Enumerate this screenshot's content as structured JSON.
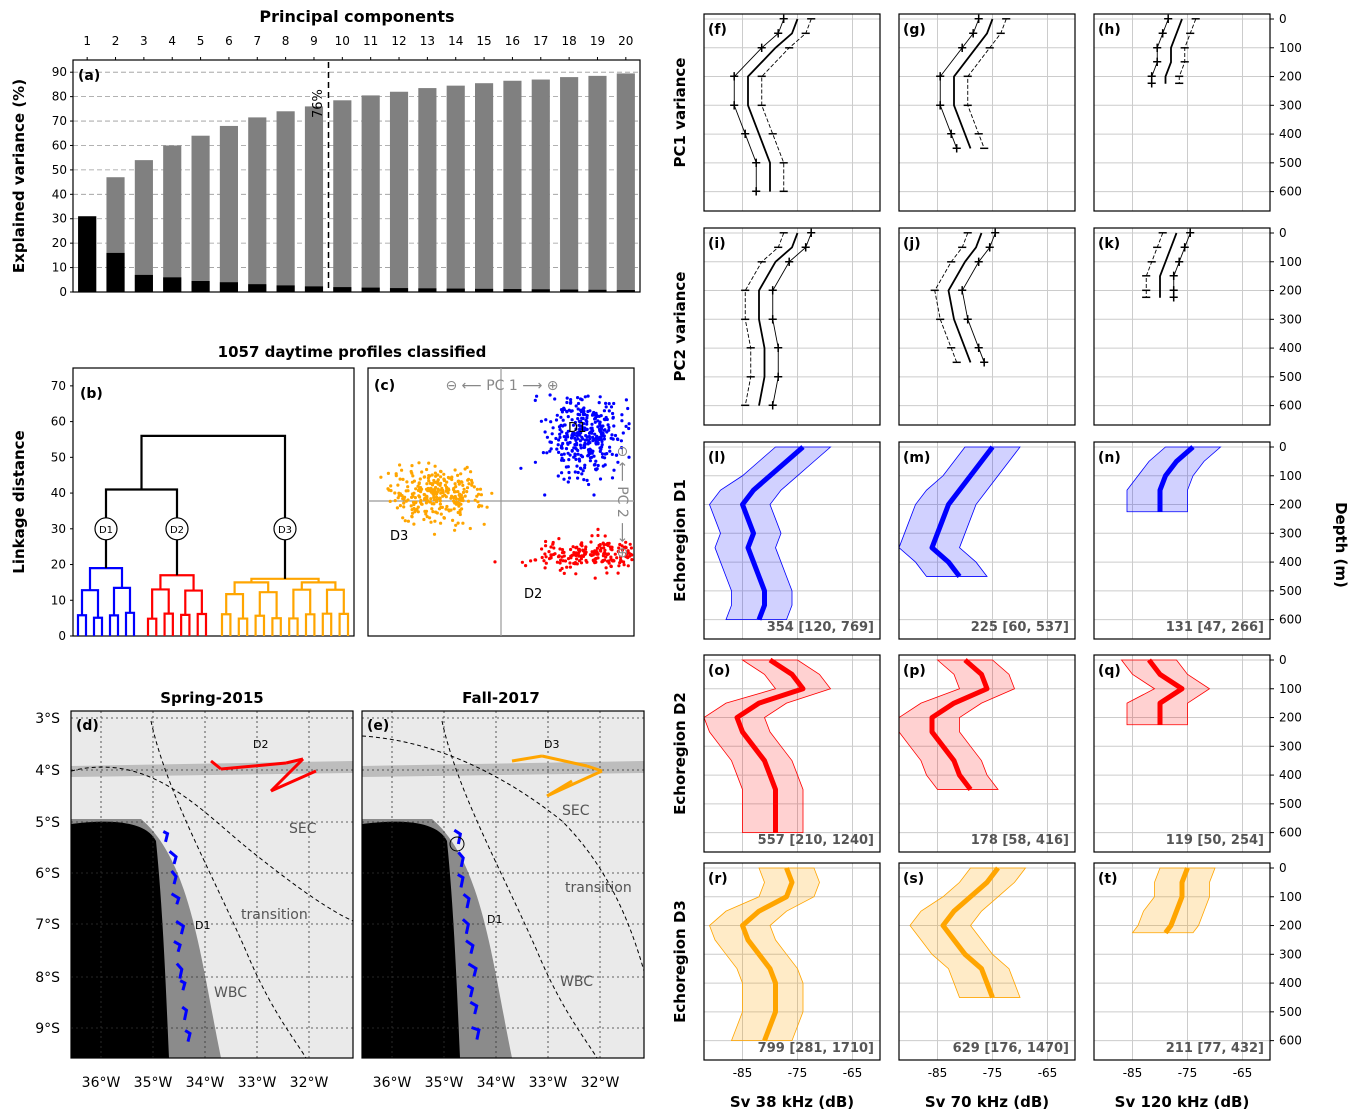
{
  "figure": {
    "pc_title": "Principal components",
    "pc_axis_ylabel": "Explained variance (%)",
    "classified_title": "1057 daytime profiles classified",
    "linkage_ylabel": "Linkage distance",
    "depth_label": "Depth (m)",
    "map_titles": [
      "Spring-2015",
      "Fall-2017"
    ]
  },
  "colors": {
    "D1": "#0000ff",
    "D2": "#ff0000",
    "D3": "#ffa500",
    "cum_bar": "#808080",
    "ind_bar": "#000000"
  },
  "chart_data": [
    {
      "type": "bar",
      "panel": "(a)",
      "title": "Principal components",
      "ylabel": "Explained variance (%)",
      "categories": [
        "1",
        "2",
        "3",
        "4",
        "5",
        "6",
        "7",
        "8",
        "9",
        "10",
        "11",
        "12",
        "13",
        "14",
        "15",
        "16",
        "17",
        "18",
        "19",
        "20"
      ],
      "ylim": [
        0,
        90
      ],
      "yticks": [
        "0",
        "10",
        "20",
        "30",
        "40",
        "50",
        "60",
        "70",
        "80",
        "90"
      ],
      "series": [
        {
          "values": [
            31,
            47,
            54,
            60,
            64,
            68,
            71.5,
            74,
            76,
            78.5,
            80.5,
            82,
            83.5,
            84.5,
            85.5,
            86.5,
            87,
            88,
            88.5,
            89.5
          ]
        },
        {
          "values": [
            31,
            16,
            7,
            6,
            4.5,
            4,
            3.2,
            2.7,
            2.3,
            2.0,
            1.8,
            1.6,
            1.5,
            1.4,
            1.3,
            1.2,
            1.1,
            1.0,
            0.9,
            0.8
          ]
        }
      ],
      "annotation": "76%",
      "grid": "horizontal dashed"
    },
    {
      "type": "dendrogram",
      "panel": "(b)",
      "ylabel": "Linkage distance",
      "ylim": [
        0,
        75
      ],
      "yticks": [
        "0",
        "10",
        "20",
        "30",
        "40",
        "50",
        "60",
        "70"
      ],
      "clusters": [
        "D1",
        "D2",
        "D3"
      ],
      "merge_heights": {
        "D1_D2": 41,
        "all": 56
      },
      "cluster_heights": {
        "D1": 19,
        "D2": 17,
        "D3": 16
      }
    },
    {
      "type": "scatter",
      "panel": "(c)",
      "axis_labels": [
        "⊖ ⟵ PC 1 ⟶ ⊕",
        "⊖ ⟵ PC 2 ⟶ ⊕"
      ],
      "groups": [
        {
          "label": "D1",
          "center": [
            0.7,
            0.55
          ],
          "spread": [
            0.35,
            0.4
          ],
          "count": 360
        },
        {
          "label": "D2",
          "center": [
            0.75,
            -0.45
          ],
          "spread": [
            0.5,
            0.15
          ],
          "count": 220
        },
        {
          "label": "D3",
          "center": [
            -0.55,
            0.05
          ],
          "spread": [
            0.45,
            0.25
          ],
          "count": 300
        }
      ]
    },
    {
      "type": "map",
      "panels": [
        "(d)",
        "(e)"
      ],
      "titles": [
        "Spring-2015",
        "Fall-2017"
      ],
      "lat_ticks": [
        "3°S",
        "4°S",
        "5°S",
        "6°S",
        "7°S",
        "8°S",
        "9°S"
      ],
      "lon_ticks": [
        "36°W",
        "35°W",
        "34°W",
        "33°W",
        "32°W"
      ],
      "labels_d": [
        "D2",
        "SEC",
        "transition",
        "D1",
        "WBC"
      ],
      "labels_e": [
        "D3",
        "SEC",
        "transition",
        "D1",
        "WBC"
      ]
    },
    {
      "type": "line",
      "panel": "profiles (f)-(t)",
      "xlabels": [
        "Sv 38 kHz (dB)",
        "Sv 70 kHz (dB)",
        "Sv 120 kHz (dB)"
      ],
      "xticks": [
        "-85",
        "-75",
        "-65"
      ],
      "xlim": [
        -92,
        -60
      ],
      "ylabel": "Depth (m)",
      "depth_ticks": [
        "0",
        "100",
        "200",
        "300",
        "400",
        "500",
        "600"
      ],
      "row_labels": [
        "PC1 variance",
        "PC2 variance",
        "Echoregion D1",
        "Echoregion D2",
        "Echoregion D3"
      ],
      "panel_letters": [
        [
          "(f)",
          "(g)",
          "(h)"
        ],
        [
          "(i)",
          "(j)",
          "(k)"
        ],
        [
          "(l)",
          "(m)",
          "(n)"
        ],
        [
          "(o)",
          "(p)",
          "(q)"
        ],
        [
          "(r)",
          "(s)",
          "(t)"
        ]
      ],
      "counts": {
        "D1": [
          "354 [120, 769]",
          "225 [60, 537]",
          "131 [47, 266]"
        ],
        "D2": [
          "557 [210, 1240]",
          "178 [58, 416]",
          "119 [50, 254]"
        ],
        "D3": [
          "799 [281, 1710]",
          "629 [176, 1470]",
          "211 [77, 432]"
        ]
      },
      "max_depth": [
        650,
        450,
        220
      ],
      "mean_profiles": {
        "D1": [
          [
            [
              0,
              -74
            ],
            [
              50,
              -77
            ],
            [
              100,
              -80
            ],
            [
              150,
              -83
            ],
            [
              200,
              -85
            ],
            [
              250,
              -84
            ],
            [
              300,
              -83
            ],
            [
              350,
              -84
            ],
            [
              400,
              -83
            ],
            [
              450,
              -82
            ],
            [
              500,
              -81
            ],
            [
              550,
              -81
            ],
            [
              600,
              -82
            ]
          ],
          [
            [
              0,
              -75
            ],
            [
              50,
              -77
            ],
            [
              100,
              -79
            ],
            [
              150,
              -81
            ],
            [
              200,
              -83
            ],
            [
              250,
              -84
            ],
            [
              300,
              -85
            ],
            [
              350,
              -86
            ],
            [
              400,
              -83
            ],
            [
              450,
              -81
            ]
          ],
          [
            [
              0,
              -74
            ],
            [
              50,
              -77
            ],
            [
              100,
              -79
            ],
            [
              150,
              -80
            ],
            [
              200,
              -80
            ],
            [
              225,
              -80
            ]
          ]
        ],
        "D2": [
          [
            [
              0,
              -80
            ],
            [
              50,
              -76
            ],
            [
              100,
              -74
            ],
            [
              150,
              -82
            ],
            [
              200,
              -86
            ],
            [
              250,
              -85
            ],
            [
              300,
              -83
            ],
            [
              350,
              -81
            ],
            [
              400,
              -80
            ],
            [
              450,
              -79
            ],
            [
              500,
              -79
            ],
            [
              550,
              -79
            ],
            [
              600,
              -79
            ]
          ],
          [
            [
              0,
              -80
            ],
            [
              50,
              -77
            ],
            [
              100,
              -76
            ],
            [
              150,
              -82
            ],
            [
              200,
              -86
            ],
            [
              250,
              -86
            ],
            [
              300,
              -84
            ],
            [
              350,
              -82
            ],
            [
              400,
              -81
            ],
            [
              450,
              -79
            ]
          ],
          [
            [
              0,
              -82
            ],
            [
              50,
              -80
            ],
            [
              100,
              -76
            ],
            [
              150,
              -80
            ],
            [
              200,
              -80
            ],
            [
              225,
              -80
            ]
          ]
        ],
        "D3": [
          [
            [
              0,
              -77
            ],
            [
              50,
              -76
            ],
            [
              100,
              -77
            ],
            [
              150,
              -82
            ],
            [
              200,
              -85
            ],
            [
              250,
              -84
            ],
            [
              300,
              -82
            ],
            [
              350,
              -80
            ],
            [
              400,
              -79
            ],
            [
              450,
              -79
            ],
            [
              500,
              -79
            ],
            [
              550,
              -80
            ],
            [
              600,
              -81
            ]
          ],
          [
            [
              0,
              -74
            ],
            [
              50,
              -76
            ],
            [
              100,
              -79
            ],
            [
              150,
              -82
            ],
            [
              200,
              -84
            ],
            [
              250,
              -82
            ],
            [
              300,
              -80
            ],
            [
              350,
              -77
            ],
            [
              400,
              -76
            ],
            [
              450,
              -75
            ]
          ],
          [
            [
              0,
              -75
            ],
            [
              50,
              -76
            ],
            [
              100,
              -76
            ],
            [
              150,
              -77
            ],
            [
              200,
              -78
            ],
            [
              225,
              -79
            ]
          ]
        ]
      },
      "pc_profiles": {
        "PC1": [
          [
            [
              0,
              -75
            ],
            [
              50,
              -76
            ],
            [
              100,
              -79
            ],
            [
              200,
              -84
            ],
            [
              300,
              -84
            ],
            [
              400,
              -82
            ],
            [
              500,
              -80
            ],
            [
              600,
              -80
            ]
          ],
          [
            [
              0,
              -75
            ],
            [
              50,
              -76
            ],
            [
              100,
              -78
            ],
            [
              200,
              -82
            ],
            [
              300,
              -82
            ],
            [
              400,
              -80
            ],
            [
              450,
              -79
            ]
          ],
          [
            [
              0,
              -76
            ],
            [
              50,
              -77
            ],
            [
              100,
              -78
            ],
            [
              150,
              -78
            ],
            [
              200,
              -79
            ],
            [
              225,
              -79
            ]
          ]
        ],
        "PC2": [
          [
            [
              0,
              -75
            ],
            [
              50,
              -76
            ],
            [
              100,
              -79
            ],
            [
              200,
              -82
            ],
            [
              300,
              -82
            ],
            [
              400,
              -81
            ],
            [
              500,
              -81
            ],
            [
              600,
              -82
            ]
          ],
          [
            [
              0,
              -77
            ],
            [
              50,
              -78
            ],
            [
              100,
              -80
            ],
            [
              200,
              -83
            ],
            [
              300,
              -82
            ],
            [
              400,
              -80
            ],
            [
              450,
              -79
            ]
          ],
          [
            [
              0,
              -77
            ],
            [
              50,
              -78
            ],
            [
              100,
              -79
            ],
            [
              150,
              -80
            ],
            [
              200,
              -80
            ],
            [
              225,
              -80
            ]
          ]
        ]
      }
    }
  ]
}
